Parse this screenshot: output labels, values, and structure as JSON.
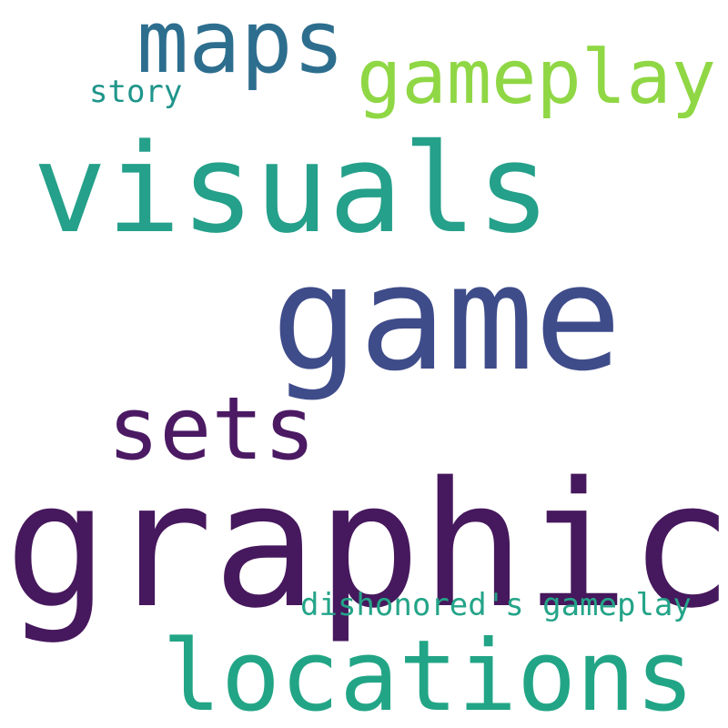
{
  "words": {
    "graphics": {
      "text": "graphics",
      "color": "#46185d"
    },
    "game": {
      "text": "game",
      "color": "#3f4c8a"
    },
    "visuals": {
      "text": "visuals",
      "color": "#25a08a"
    },
    "locations": {
      "text": "locations",
      "color": "#22a586"
    },
    "sets": {
      "text": "sets",
      "color": "#4b1a63"
    },
    "maps": {
      "text": "maps",
      "color": "#2d6e8e"
    },
    "gameplay": {
      "text": "gameplay",
      "color": "#8fd744"
    },
    "dishonored": {
      "text": "dishonored's gameplay",
      "color": "#24a488"
    },
    "story": {
      "text": "story",
      "color": "#1f958b"
    }
  }
}
